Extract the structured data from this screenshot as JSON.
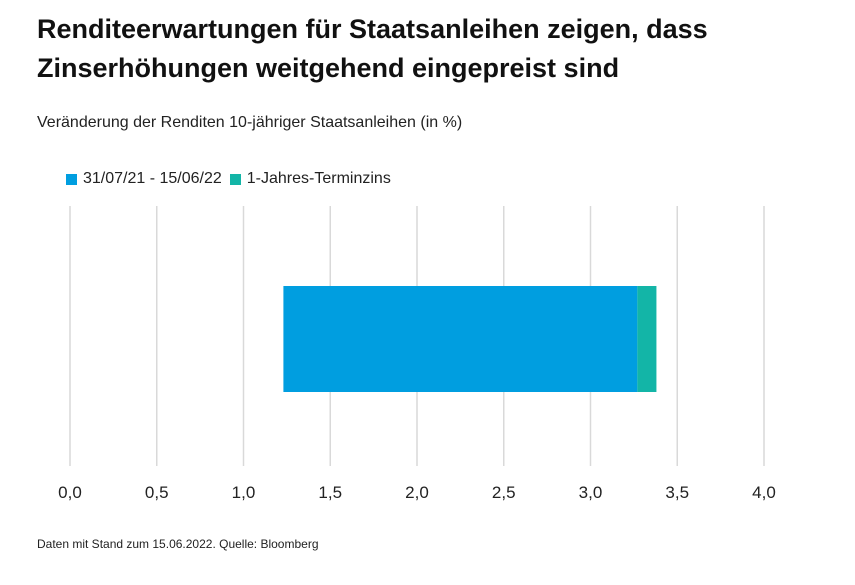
{
  "title": "Renditeerwartungen für Staatsanleihen zeigen, dass Zinserhöhungen weitgehend eingepreist sind",
  "subtitle": "Veränderung der Renditen 10-jähriger Staatsanleihen (in %)",
  "source": "Daten mit Stand zum 15.06.2022. Quelle: Bloomberg",
  "colors": {
    "series1": "#009ee0",
    "series2": "#13b5a7",
    "grid": "#d9d9d9"
  },
  "legend": {
    "items": [
      {
        "label": "31/07/21 - 15/06/22"
      },
      {
        "label": "1-Jahres-Terminzins"
      }
    ]
  },
  "chart_data": {
    "type": "bar",
    "orientation": "horizontal",
    "stacked": true,
    "title": "Renditeerwartungen für Staatsanleihen zeigen, dass Zinserhöhungen weitgehend eingepreist sind",
    "subtitle": "Veränderung der Renditen 10-jähriger Staatsanleihen (in %)",
    "xlabel": "",
    "ylabel": "",
    "xlim": [
      0,
      4.0
    ],
    "xticks": [
      "0,0",
      "0,5",
      "1,0",
      "1,5",
      "2,0",
      "2,5",
      "3,0",
      "3,5",
      "4,0"
    ],
    "grid": true,
    "legend_position": "top-left",
    "series": [
      {
        "name": "31/07/21 - 15/06/22",
        "start": 1.23,
        "end": 3.27
      },
      {
        "name": "1-Jahres-Terminzins",
        "start": 3.27,
        "end": 3.38
      }
    ]
  }
}
